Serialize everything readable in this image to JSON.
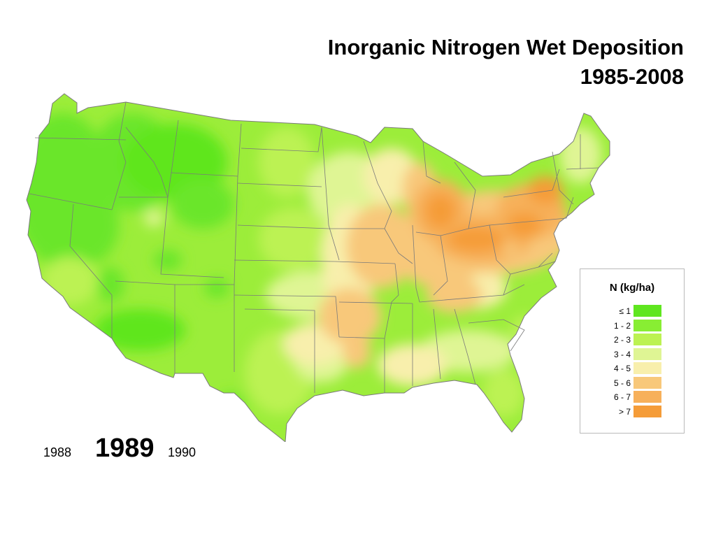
{
  "title": {
    "line1": "Inorganic Nitrogen Wet Deposition",
    "line2": "1985-2008"
  },
  "legend": {
    "title": "N  (kg/ha)",
    "items": [
      {
        "label": "≤ 1",
        "color": "#5fe61f"
      },
      {
        "label": "1 - 2",
        "color": "#88ee33"
      },
      {
        "label": "2 - 3",
        "color": "#bcf252"
      },
      {
        "label": "3 - 4",
        "color": "#dff594"
      },
      {
        "label": "4 - 5",
        "color": "#f8efac"
      },
      {
        "label": "5 - 6",
        "color": "#f8c87a"
      },
      {
        "label": "6 - 7",
        "color": "#f7b05a"
      },
      {
        "label": "> 7",
        "color": "#f59c38"
      }
    ]
  },
  "years": {
    "previous": "1988",
    "current": "1989",
    "next": "1990"
  },
  "map": {
    "region": "Contiguous United States",
    "border_color": "#7a7a7a"
  }
}
